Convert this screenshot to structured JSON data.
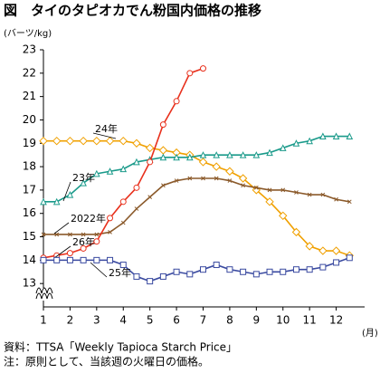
{
  "chart_data": {
    "type": "line",
    "title": "図　タイのタピオカでん粉国内価格の推移",
    "y_label": "(バーツ/kg)",
    "x_label": "(月)",
    "source": "資料：TTSA「Weekly Tapioca Starch Price」",
    "note": "注：原則として、当該週の火曜日の価格。",
    "x": [
      1,
      1.5,
      2,
      2.5,
      3,
      3.5,
      4,
      4.5,
      5,
      5.5,
      6,
      6.5,
      7,
      7.5,
      8,
      8.5,
      9,
      9.5,
      10,
      10.5,
      11,
      11.5,
      12,
      12.5
    ],
    "xlim": [
      1,
      13
    ],
    "xticks": [
      1,
      2,
      3,
      4,
      5,
      6,
      7,
      8,
      9,
      10,
      11,
      12
    ],
    "ylim": [
      12,
      23
    ],
    "yticks": [
      13,
      14,
      15,
      16,
      17,
      18,
      19,
      20,
      21,
      22,
      23
    ],
    "grid": false,
    "series": [
      {
        "name": "24年",
        "color": "#f0a000",
        "marker": "diamond",
        "values": [
          19.1,
          19.1,
          19.1,
          19.1,
          19.1,
          19.1,
          19.1,
          19.0,
          18.8,
          18.7,
          18.6,
          18.5,
          18.2,
          18.0,
          17.8,
          17.5,
          17.0,
          16.5,
          15.9,
          15.2,
          14.6,
          14.4,
          14.4,
          14.2
        ]
      },
      {
        "name": "23年",
        "color": "#1a9a8a",
        "marker": "triangle",
        "values": [
          16.5,
          16.5,
          16.8,
          17.3,
          17.7,
          17.8,
          17.9,
          18.2,
          18.3,
          18.4,
          18.4,
          18.4,
          18.5,
          18.5,
          18.5,
          18.5,
          18.5,
          18.6,
          18.8,
          19.0,
          19.1,
          19.3,
          19.3,
          19.3
        ]
      },
      {
        "name": "2022年",
        "color": "#8b5a2b",
        "marker": "cross",
        "values": [
          15.1,
          15.1,
          15.1,
          15.1,
          15.1,
          15.2,
          15.6,
          16.2,
          16.7,
          17.2,
          17.4,
          17.5,
          17.5,
          17.5,
          17.4,
          17.2,
          17.1,
          17.0,
          17.0,
          16.9,
          16.8,
          16.8,
          16.6,
          16.5
        ]
      },
      {
        "name": "26年",
        "color": "#e8301c",
        "marker": "circle",
        "values": [
          14.1,
          14.2,
          14.3,
          14.5,
          14.8,
          15.8,
          16.5,
          17.1,
          18.2,
          19.8,
          20.8,
          22.0,
          22.2,
          null,
          null,
          null,
          null,
          null,
          null,
          null,
          null,
          null,
          null,
          null
        ]
      },
      {
        "name": "25年",
        "color": "#3a4aa0",
        "marker": "square",
        "values": [
          14.0,
          14.0,
          14.0,
          14.0,
          14.0,
          14.0,
          13.8,
          13.3,
          13.1,
          13.3,
          13.5,
          13.4,
          13.6,
          13.8,
          13.6,
          13.5,
          13.4,
          13.5,
          13.5,
          13.6,
          13.6,
          13.7,
          13.9,
          14.1
        ]
      }
    ]
  }
}
